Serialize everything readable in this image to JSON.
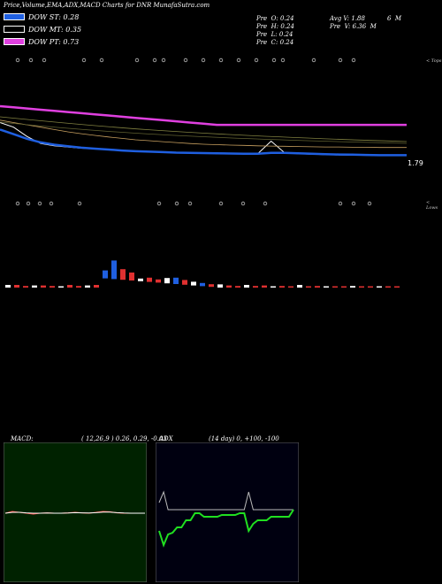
{
  "header": {
    "title": "Price,Volume,EMA,ADX,MACD Charts for DNR MunafaSutra.com"
  },
  "legend": [
    {
      "label": "DOW ST: 0.28",
      "color": "#1f5fe0"
    },
    {
      "label": "DOW MT: 0.35",
      "color": "#ffffff"
    },
    {
      "label": "DOW PT: 0.73",
      "color": "#e040e0"
    }
  ],
  "info": {
    "pre_o": "Pre  O: 0.24",
    "pre_h": "Pre  H: 0.24",
    "pre_l": "Pre  L: 0.24",
    "pre_c": "Pre  C: 0.24",
    "avg_v": "Avg V: 1.88",
    "avg_v_unit": "6  M",
    "pre_v": "Pre  V: 6.36  M"
  },
  "price_panel": {
    "top_edge": "< Tops",
    "last_price": "1.79",
    "bottom_edge": "< Lows"
  },
  "macd_panel": {
    "label": "MACD:",
    "params": "( 12,26,9 ) 0.26, 0.29, -0.03"
  },
  "adx_panel": {
    "label": "ADX",
    "params": "(14  day) 0, +100, -100"
  },
  "chart_data": [
    {
      "type": "line",
      "name": "price-ema",
      "x": [
        0,
        1,
        2,
        3,
        4,
        5,
        6,
        7,
        8,
        9,
        10,
        11,
        12,
        13,
        14,
        15,
        16,
        17,
        18,
        19,
        20,
        21,
        22,
        23,
        24,
        25,
        26,
        27,
        28,
        29,
        30
      ],
      "series": [
        {
          "values": [
            3.2,
            3.0,
            2.6,
            2.3,
            2.2,
            2.15,
            2.1,
            2.08,
            2.05,
            2.0,
            1.98,
            1.95,
            1.93,
            1.92,
            1.9,
            1.9,
            1.88,
            1.87,
            1.86,
            1.85,
            2.4,
            1.9,
            1.86,
            1.84,
            1.82,
            1.81,
            1.8,
            1.8,
            1.79,
            1.79,
            1.79
          ]
        },
        {
          "values": [
            2.9,
            2.7,
            2.5,
            2.35,
            2.25,
            2.18,
            2.12,
            2.08,
            2.04,
            2.0,
            1.97,
            1.95,
            1.93,
            1.91,
            1.9,
            1.89,
            1.88,
            1.87,
            1.86,
            1.86,
            1.9,
            1.9,
            1.88,
            1.86,
            1.84,
            1.83,
            1.82,
            1.81,
            1.8,
            1.8,
            1.8
          ]
        },
        {
          "values": [
            3.3,
            3.2,
            3.1,
            3.0,
            2.9,
            2.8,
            2.72,
            2.65,
            2.58,
            2.52,
            2.46,
            2.42,
            2.38,
            2.34,
            2.3,
            2.27,
            2.25,
            2.23,
            2.22,
            2.2,
            2.19,
            2.18,
            2.17,
            2.16,
            2.15,
            2.15,
            2.14,
            2.14,
            2.13,
            2.13,
            2.13
          ]
        },
        {
          "values": [
            3.9,
            3.85,
            3.8,
            3.75,
            3.7,
            3.65,
            3.6,
            3.55,
            3.5,
            3.45,
            3.4,
            3.35,
            3.3,
            3.25,
            3.2,
            3.15,
            3.1,
            3.1,
            3.1,
            3.1,
            3.1,
            3.1,
            3.1,
            3.1,
            3.1,
            3.1,
            3.1,
            3.1,
            3.1,
            3.1,
            3.1
          ]
        }
      ]
    },
    {
      "type": "bar",
      "name": "volume",
      "categories": [
        "1",
        "2",
        "3",
        "4",
        "5",
        "6",
        "7",
        "8",
        "9",
        "10",
        "11",
        "12",
        "13",
        "14",
        "15",
        "16",
        "17",
        "18",
        "19",
        "20",
        "21",
        "22",
        "23",
        "24",
        "25",
        "26",
        "27",
        "28",
        "29",
        "30",
        "31",
        "32",
        "33",
        "34",
        "35",
        "36",
        "37",
        "38",
        "39",
        "40",
        "41",
        "42",
        "43",
        "44",
        "45"
      ],
      "values": [
        0.5,
        0.5,
        0.3,
        0.4,
        0.4,
        0.3,
        0.2,
        0.5,
        0.3,
        0.4,
        0.5,
        1.5,
        3.5,
        2.0,
        1.5,
        0.5,
        0.8,
        0.6,
        1.0,
        1.2,
        0.9,
        0.7,
        0.6,
        0.5,
        0.6,
        0.4,
        0.3,
        0.5,
        0.3,
        0.4,
        0.2,
        0.3,
        0.2,
        0.5,
        0.2,
        0.3,
        0.2,
        0.2,
        0.2,
        0.3,
        0.2,
        0.2,
        0.1,
        0.2,
        0.2
      ]
    },
    {
      "type": "line",
      "name": "macd",
      "x": [
        0,
        1,
        2,
        3,
        4,
        5,
        6,
        7,
        8,
        9,
        10,
        11,
        12,
        13,
        14,
        15,
        16,
        17,
        18,
        19,
        20
      ],
      "series": [
        {
          "values": [
            0,
            0.1,
            0.05,
            0.0,
            -0.05,
            0,
            0.02,
            0,
            0,
            0.02,
            0.05,
            0.02,
            0,
            0.05,
            0.1,
            0.08,
            0.02,
            0,
            0,
            0,
            0
          ]
        },
        {
          "values": [
            0,
            0.05,
            0.05,
            0.02,
            0,
            0,
            0.01,
            0,
            0,
            0.01,
            0.03,
            0.02,
            0.01,
            0.03,
            0.06,
            0.06,
            0.03,
            0.01,
            0,
            0,
            0
          ]
        }
      ]
    },
    {
      "type": "line",
      "name": "adx",
      "x": [
        0,
        1,
        2,
        3,
        4,
        5,
        6,
        7,
        8,
        9,
        10,
        11,
        12,
        13,
        14,
        15,
        16,
        17,
        18,
        19,
        20,
        21,
        22,
        23,
        24,
        25,
        26,
        27,
        28,
        29,
        30
      ],
      "series": [
        {
          "values": [
            30,
            60,
            10,
            10,
            10,
            10,
            10,
            10,
            10,
            10,
            10,
            10,
            10,
            10,
            10,
            10,
            10,
            10,
            10,
            10,
            60,
            10,
            10,
            10,
            10,
            10,
            10,
            10,
            10,
            10,
            10
          ]
        },
        {
          "values": [
            -50,
            -90,
            -60,
            -55,
            -40,
            -40,
            -20,
            -20,
            0,
            0,
            -10,
            -10,
            -10,
            -10,
            -5,
            -5,
            -5,
            -5,
            0,
            0,
            -50,
            -30,
            -20,
            -20,
            -20,
            -10,
            -10,
            -10,
            -10,
            -10,
            10
          ]
        }
      ]
    }
  ]
}
